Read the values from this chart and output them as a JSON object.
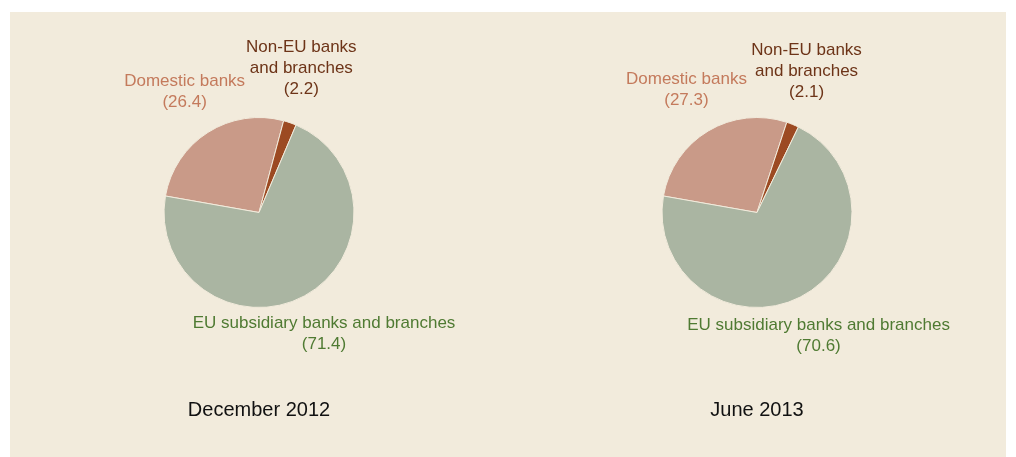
{
  "chart_data": [
    {
      "type": "pie",
      "title": "December 2012",
      "categories": [
        "Domestic banks",
        "Non-EU banks and branches",
        "EU subsidiary banks and branches"
      ],
      "values": [
        26.4,
        2.2,
        71.4
      ],
      "value_labels": [
        "(26.4)",
        "(2.2)",
        "(71.4)"
      ],
      "colors": [
        "#c99a88",
        "#9c4a22",
        "#aab5a2"
      ],
      "legend": false
    },
    {
      "type": "pie",
      "title": "June 2013",
      "categories": [
        "Domestic banks",
        "Non-EU banks and branches",
        "EU subsidiary banks and branches"
      ],
      "values": [
        27.3,
        2.1,
        70.6
      ],
      "value_labels": [
        "(27.3)",
        "(2.1)",
        "(70.6)"
      ],
      "colors": [
        "#c99a88",
        "#9c4a22",
        "#aab5a2"
      ],
      "legend": false
    }
  ]
}
